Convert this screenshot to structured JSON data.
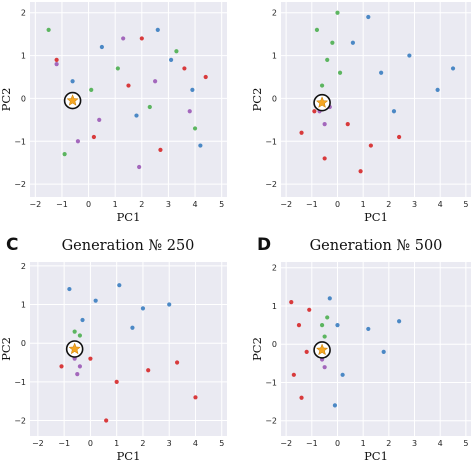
{
  "chart_data": [
    {
      "panel": "A",
      "letter": "",
      "title": "",
      "type": "scatter",
      "xlabel": "PC1",
      "ylabel": "PC2",
      "xlim": [
        -2.2,
        5.2
      ],
      "ylim": [
        -2.3,
        2.25
      ],
      "xticks": [
        -2,
        -1,
        0,
        1,
        2,
        3,
        4,
        5
      ],
      "yticks": [
        -2,
        -1,
        0,
        1,
        2
      ],
      "grid": true,
      "background": "#EAEAF2",
      "marker": {
        "shape": "star-in-circle",
        "x": -0.6,
        "y": -0.05
      },
      "series": [
        {
          "color": "#3A7DC0",
          "x": [
            0.5,
            1.8,
            3.1,
            4.2,
            -0.6,
            2.6,
            3.9
          ],
          "y": [
            1.2,
            -0.4,
            0.9,
            -1.1,
            0.4,
            1.6,
            0.2
          ]
        },
        {
          "color": "#D62728",
          "x": [
            0.2,
            1.5,
            2.7,
            3.6,
            -1.2,
            4.4,
            2.0
          ],
          "y": [
            -0.9,
            0.3,
            -1.2,
            0.7,
            0.9,
            0.5,
            1.4
          ]
        },
        {
          "color": "#4CAF50",
          "x": [
            -1.5,
            -0.9,
            1.1,
            2.3,
            3.3,
            0.1,
            4.0
          ],
          "y": [
            1.6,
            -1.3,
            0.7,
            -0.2,
            1.1,
            0.2,
            -0.7
          ]
        },
        {
          "color": "#9B59B6",
          "x": [
            -1.2,
            0.4,
            1.3,
            2.5,
            3.8,
            -0.4,
            1.9
          ],
          "y": [
            0.8,
            -0.5,
            1.4,
            0.4,
            -0.3,
            -1.0,
            -1.6
          ]
        }
      ]
    },
    {
      "panel": "B",
      "letter": "",
      "title": "",
      "type": "scatter",
      "xlabel": "PC1",
      "ylabel": "PC2",
      "xlim": [
        -2.2,
        5.2
      ],
      "ylim": [
        -2.3,
        2.25
      ],
      "xticks": [
        -2,
        -1,
        0,
        1,
        2,
        3,
        4,
        5
      ],
      "yticks": [
        -2,
        -1,
        0,
        1,
        2
      ],
      "grid": true,
      "background": "#EAEAF2",
      "marker": {
        "shape": "star-in-circle",
        "x": -0.6,
        "y": -0.1
      },
      "series": [
        {
          "color": "#3A7DC0",
          "x": [
            0.6,
            1.7,
            2.8,
            3.9,
            1.2,
            2.2,
            4.5
          ],
          "y": [
            1.3,
            0.6,
            1.0,
            0.2,
            1.9,
            -0.3,
            0.7
          ]
        },
        {
          "color": "#D62728",
          "x": [
            -1.4,
            -0.5,
            0.4,
            1.3,
            2.4,
            -0.9,
            0.9
          ],
          "y": [
            -0.8,
            -1.4,
            -0.6,
            -1.1,
            -0.9,
            -0.3,
            -1.7
          ]
        },
        {
          "color": "#4CAF50",
          "x": [
            -0.8,
            -0.4,
            0.0,
            -0.6,
            -0.2,
            0.1
          ],
          "y": [
            1.6,
            0.9,
            2.0,
            0.3,
            1.3,
            0.6
          ]
        },
        {
          "color": "#9B59B6",
          "x": [
            -0.7,
            -0.5,
            -0.3
          ],
          "y": [
            -0.3,
            -0.6,
            -0.2
          ]
        }
      ]
    },
    {
      "panel": "C",
      "letter": "C",
      "title": "Generation № 250",
      "type": "scatter",
      "xlabel": "PC1",
      "ylabel": "PC2",
      "xlim": [
        -2.3,
        5.2
      ],
      "ylim": [
        -2.4,
        2.1
      ],
      "xticks": [
        -2,
        -1,
        0,
        1,
        2,
        3,
        4,
        5
      ],
      "yticks": [
        -2,
        -1,
        0,
        1,
        2
      ],
      "grid": true,
      "background": "#EAEAF2",
      "marker": {
        "shape": "star-in-circle",
        "x": -0.6,
        "y": -0.15
      },
      "series": [
        {
          "color": "#3A7DC0",
          "x": [
            -0.8,
            0.2,
            1.1,
            2.0,
            3.0,
            -0.3,
            1.6
          ],
          "y": [
            1.4,
            1.1,
            1.5,
            0.9,
            1.0,
            0.6,
            0.4
          ]
        },
        {
          "color": "#D62728",
          "x": [
            -1.1,
            0.0,
            1.0,
            2.2,
            3.3,
            4.0,
            0.6
          ],
          "y": [
            -0.6,
            -0.4,
            -1.0,
            -0.7,
            -0.5,
            -1.4,
            -2.0
          ]
        },
        {
          "color": "#4CAF50",
          "x": [
            -0.6,
            -0.4
          ],
          "y": [
            0.3,
            0.2
          ]
        },
        {
          "color": "#9B59B6",
          "x": [
            -0.6,
            -0.4,
            -0.5
          ],
          "y": [
            -0.4,
            -0.6,
            -0.8
          ]
        }
      ]
    },
    {
      "panel": "D",
      "letter": "D",
      "title": "Generation № 500",
      "type": "scatter",
      "xlabel": "PC1",
      "ylabel": "PC2",
      "xlim": [
        -2.2,
        5.2
      ],
      "ylim": [
        -2.4,
        2.15
      ],
      "xticks": [
        -2,
        -1,
        0,
        1,
        2,
        3,
        4,
        5
      ],
      "yticks": [
        -2,
        -1,
        0,
        1,
        2
      ],
      "grid": true,
      "background": "#EAEAF2",
      "marker": {
        "shape": "star-in-circle",
        "x": -0.6,
        "y": -0.15
      },
      "series": [
        {
          "color": "#3A7DC0",
          "x": [
            -0.3,
            0.0,
            0.2,
            1.2,
            1.8,
            2.4,
            -0.1
          ],
          "y": [
            1.2,
            0.5,
            -0.8,
            0.4,
            -0.2,
            0.6,
            -1.6
          ]
        },
        {
          "color": "#D62728",
          "x": [
            -1.8,
            -1.5,
            -1.2,
            -1.7,
            -1.4,
            -1.1
          ],
          "y": [
            1.1,
            0.5,
            -0.2,
            -0.8,
            -1.4,
            0.9
          ]
        },
        {
          "color": "#4CAF50",
          "x": [
            -0.6,
            -0.5,
            -0.4
          ],
          "y": [
            0.5,
            0.2,
            0.7
          ]
        },
        {
          "color": "#9B59B6",
          "x": [
            -0.6,
            -0.5
          ],
          "y": [
            -0.4,
            -0.6
          ]
        }
      ]
    }
  ]
}
